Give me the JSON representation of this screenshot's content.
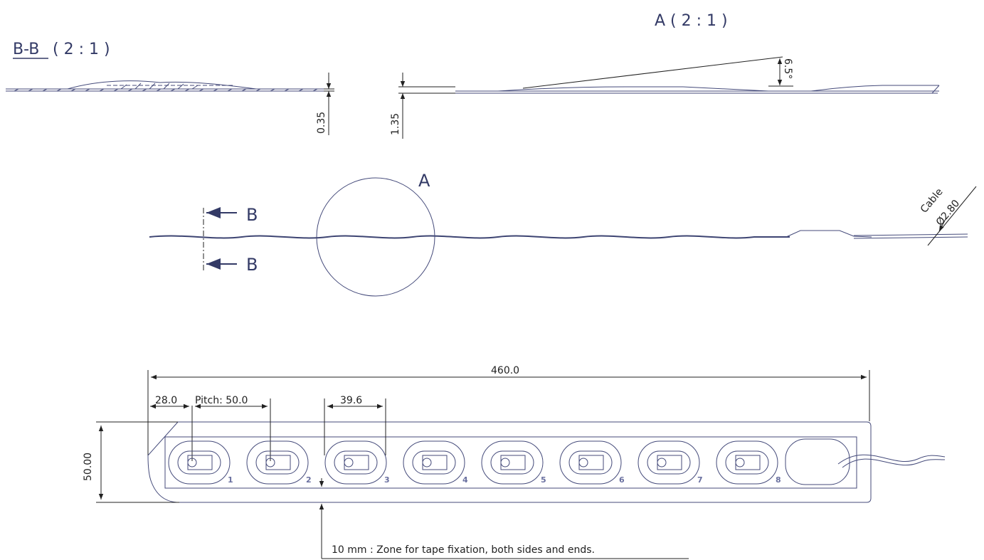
{
  "views": {
    "section_bb": {
      "label": "B-B",
      "scale": "( 2 : 1 )",
      "thickness": "0.35"
    },
    "detail_a": {
      "label": "A ( 2 : 1 )",
      "height": "1.35",
      "angle": "6.5°"
    },
    "side": {
      "detail_label": "A",
      "section_mark_top": "B",
      "section_mark_bottom": "B",
      "cable_label": "Cable",
      "cable_diameter": "Ø2.80"
    },
    "top": {
      "overall_length": "460.0",
      "edge_to_first": "28.0",
      "pitch": "Pitch:  50.0",
      "pad_width": "39.6",
      "width": "50.00",
      "pad_numbers": [
        "1",
        "2",
        "3",
        "4",
        "5",
        "6",
        "7",
        "8"
      ],
      "note": "10 mm : Zone for tape fixation, both sides and ends."
    }
  }
}
